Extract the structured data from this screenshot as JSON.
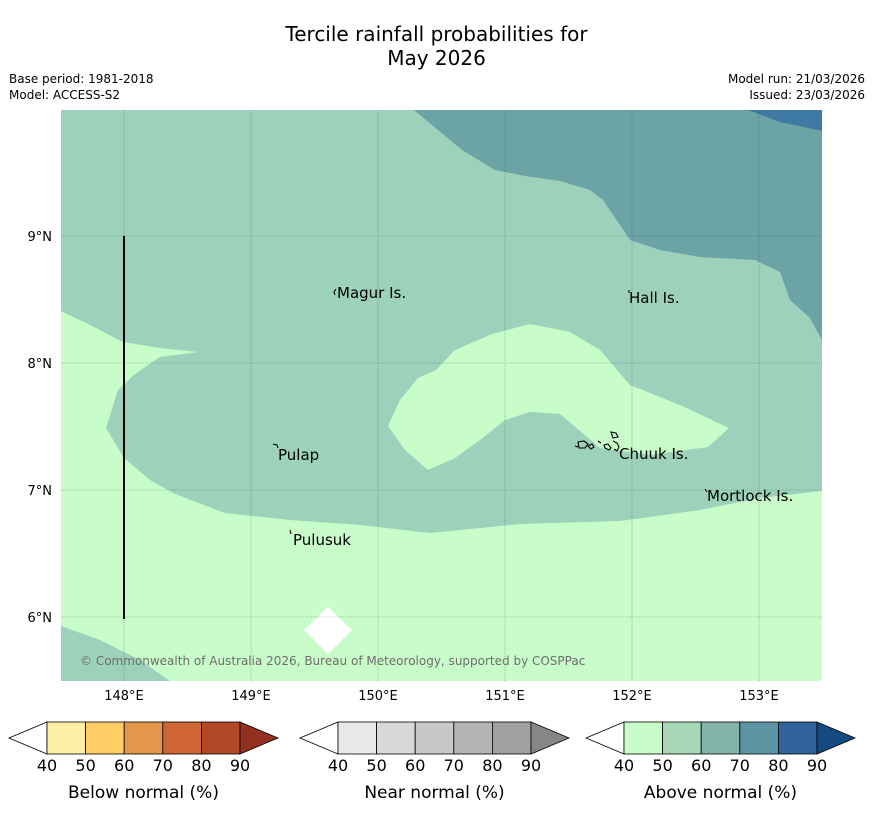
{
  "title_line1": "Tercile rainfall probabilities for",
  "title_line2": "May 2026",
  "info": {
    "base_period": "Base period: 1981-2018",
    "model": "Model: ACCESS-S2",
    "model_run": "Model run: 21/03/2026",
    "issued": "Issued: 23/03/2026"
  },
  "map": {
    "lat_ticks": [
      "9°N",
      "8°N",
      "7°N",
      "6°N"
    ],
    "lon_ticks": [
      "148°E",
      "149°E",
      "150°E",
      "151°E",
      "152°E",
      "153°E"
    ],
    "places": [
      {
        "name": "Magur Is."
      },
      {
        "name": "Hall Is."
      },
      {
        "name": "Pulap"
      },
      {
        "name": "Chuuk Is."
      },
      {
        "name": "Mortlock Is."
      },
      {
        "name": "Pulusuk"
      }
    ],
    "copyright": "© Commonwealth of Australia 2026, Bureau of Meteorology, supported by COSPPac",
    "colors": {
      "above_50_60": "#9dd1bb",
      "above_40_50": "#c8fcc8",
      "above_60_70": "#6ca4a6",
      "above_70_80": "#3e7aa3"
    }
  },
  "colorbars": [
    {
      "caption": "Below normal (%)",
      "ticks": [
        "40",
        "50",
        "60",
        "70",
        "80",
        "90"
      ],
      "colors": [
        "#ffefa4",
        "#fecd65",
        "#e3974a",
        "#ce6532",
        "#b34826",
        "#94301f"
      ]
    },
    {
      "caption": "Near normal (%)",
      "ticks": [
        "40",
        "50",
        "60",
        "70",
        "80",
        "90"
      ],
      "colors": [
        "#e8e8e8",
        "#d8d8d8",
        "#c8c8c8",
        "#b4b4b4",
        "#a0a0a0",
        "#868686"
      ]
    },
    {
      "caption": "Above normal (%)",
      "ticks": [
        "40",
        "50",
        "60",
        "70",
        "80",
        "90"
      ],
      "colors": [
        "#c8fcc8",
        "#a6d8b8",
        "#82b4a8",
        "#5c94a4",
        "#30649a",
        "#134a80"
      ]
    }
  ]
}
